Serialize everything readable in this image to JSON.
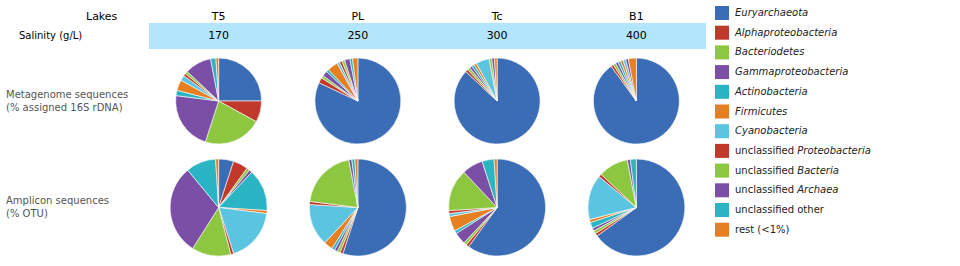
{
  "chart_data": {
    "type": "pie",
    "column_title": "Lakes",
    "columns": [
      "T5",
      "PL",
      "Tc",
      "B1"
    ],
    "column_subtitle": "Salinity (g/L)",
    "column_subtitles": [
      "170",
      "250",
      "300",
      "400"
    ],
    "header_color": "#b3e5fc",
    "rows": [
      "Metagenome sequences\n(% assigned 16S rDNA)",
      "Amplicon sequences\n(% OTU)"
    ],
    "legend": "right",
    "categories": [
      "Euryarchaeota",
      "Alphaproteobacteria",
      "Bacteriodetes",
      "Gammaproteobacteria",
      "Actinobacteria",
      "Firmicutes",
      "Cyanobacteria",
      "unclassified Proteobacteria",
      "unclassified Bacteria",
      "unclassified Archaea",
      "unclassified other",
      "rest (<1%)"
    ],
    "colors": [
      "#3a6db5",
      "#c0392b",
      "#8dc63f",
      "#7b4fa6",
      "#2ab4c4",
      "#e67e22",
      "#5bc4e0",
      "#c0392b",
      "#8dc63f",
      "#7b4fa6",
      "#2ab4c4",
      "#e67e22"
    ],
    "values": [
      [
        [
          25,
          8,
          22,
          22,
          2,
          4,
          2,
          1,
          1,
          10,
          2,
          1
        ],
        [
          82,
          2,
          1,
          2,
          1,
          4,
          1,
          1,
          1,
          2,
          1,
          2
        ],
        [
          87,
          1,
          1,
          1,
          1,
          1,
          5,
          0,
          1,
          1,
          0,
          1
        ],
        [
          90,
          1,
          1,
          1,
          1,
          1,
          1,
          0,
          0,
          1,
          0,
          3
        ]
      ],
      [
        [
          5,
          5,
          1,
          1,
          14,
          1,
          18,
          1,
          13,
          30,
          10,
          1
        ],
        [
          55,
          1,
          1,
          1,
          1,
          3,
          14,
          1,
          20,
          1,
          1,
          1
        ],
        [
          60,
          1,
          1,
          4,
          1,
          5,
          1,
          1,
          14,
          7,
          4,
          1
        ],
        [
          65,
          1,
          1,
          1,
          2,
          1,
          15,
          1,
          10,
          1,
          2,
          0
        ]
      ]
    ]
  }
}
